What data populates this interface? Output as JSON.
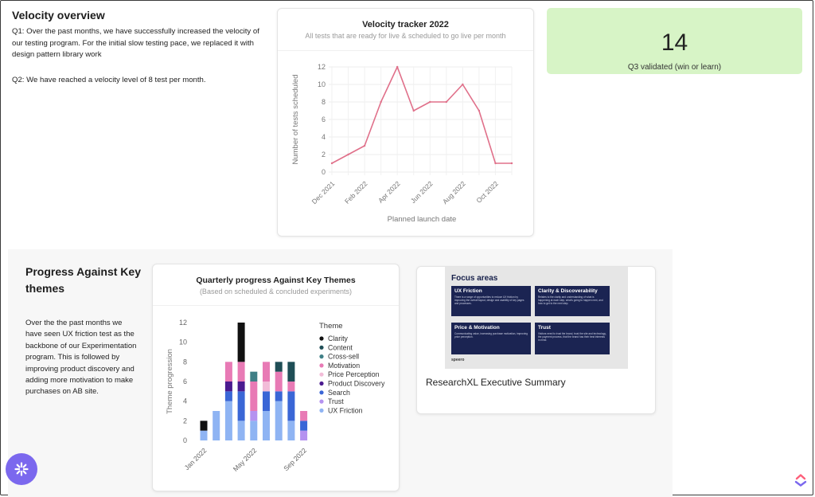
{
  "velocity": {
    "title": "Velocity overview",
    "q1": "Q1: Over the past months, we have successfully increased the velocity of our testing program. For the initial slow testing pace, we replaced it with design pattern library work",
    "q2": "Q2: We have reached a velocity level of 8 test per month."
  },
  "tracker": {
    "title": "Velocity tracker 2022",
    "subtitle": "All tests that are ready for live & scheduled to go live per month"
  },
  "kpi": {
    "value": "14",
    "label": "Q3 validated (win or learn)",
    "bg_color": "#d7f4c6"
  },
  "progress": {
    "title": "Progress Against Key themes",
    "text": "Over the  the past months we have seen UX friction test as the backbone of our Experimentation program. This is followed by improving product discovery and adding more motivation to make purchases on AB site."
  },
  "quarterly": {
    "title": "Quarterly progress Against Key Themes",
    "subtitle": "(Based on scheduled & concluded experiments)"
  },
  "summary": {
    "label": "ResearchXL Executive Summary",
    "thumb_title": "Focus areas",
    "thumb_logo": "speero",
    "boxes": [
      {
        "title": "UX Friction",
        "text": "There is a range of opportunities to reduce UX friction by improving the overall layout, design and usability of key pages and processes."
      },
      {
        "title": "Clarity & Discoverability",
        "text": "Relates to the clarity and understanding of what is happening at each step, what's going to happen next, and how to get to the next step."
      },
      {
        "title": "Price & Motivation",
        "text": "Communicating value, increasing purchase motivation, improving price perception."
      },
      {
        "title": "Trust",
        "text": "Visitors need to trust the brand, trust the site and technology, the payment process, that the brand has their best interests in mind."
      }
    ]
  },
  "icons": {
    "fab": "sparkle-icon",
    "brand": "clickup-logo-icon",
    "fab_color": "#7b68ee"
  },
  "chart_data": [
    {
      "type": "line",
      "xlabel": "Planned launch date",
      "ylabel": "Number of tests scheduled",
      "ylim": [
        0,
        12
      ],
      "yticks": [
        "0",
        "2",
        "4",
        "6",
        "8",
        "10",
        "12"
      ],
      "xtick_labels": [
        "Dec 2021",
        "Feb 2022",
        "Apr 2022",
        "Jun 2022",
        "Aug 2022",
        "Oct 2022"
      ],
      "x": [
        "2021-12",
        "2022-01",
        "2022-02",
        "2022-03",
        "2022-04",
        "2022-05",
        "2022-06",
        "2022-07",
        "2022-08",
        "2022-09",
        "2022-10",
        "2022-11"
      ],
      "series": [
        {
          "values": [
            1,
            2,
            3,
            8,
            12,
            7,
            8,
            8,
            10,
            7,
            1,
            1
          ],
          "color": "#e0708a"
        }
      ],
      "grid": true,
      "legend": "none"
    },
    {
      "type": "bar",
      "stacked": true,
      "ylabel": "Theme progression",
      "ylim": [
        0,
        12
      ],
      "yticks": [
        "0",
        "2",
        "4",
        "6",
        "8",
        "10",
        "12"
      ],
      "xtick_labels": [
        "Jan 2022",
        "May 2022",
        "Sep 2022"
      ],
      "legend_title": "Theme",
      "legend": "right",
      "grid": false,
      "series": [
        {
          "name": "Clarity",
          "color": "#111111",
          "values": [
            1,
            0,
            0,
            4,
            0,
            0,
            0,
            0,
            0
          ]
        },
        {
          "name": "Content",
          "color": "#1f4e56",
          "values": [
            0,
            0,
            0,
            0,
            0,
            0,
            1,
            2,
            0
          ]
        },
        {
          "name": "Cross-sell",
          "color": "#3f7f86",
          "values": [
            0,
            0,
            0,
            0,
            1,
            0,
            0,
            0,
            0
          ]
        },
        {
          "name": "Motivation",
          "color": "#e87ab5",
          "values": [
            0,
            0,
            2,
            2,
            3,
            2,
            2,
            1,
            1
          ]
        },
        {
          "name": "Price Perception",
          "color": "#f2bcd8",
          "values": [
            0,
            0,
            0,
            0,
            0,
            1,
            0,
            0,
            0
          ]
        },
        {
          "name": "Product Discovery",
          "color": "#4b1a8f",
          "values": [
            0,
            0,
            1,
            1,
            0,
            0,
            0,
            0,
            0
          ]
        },
        {
          "name": "Search",
          "color": "#3a66d6",
          "values": [
            0,
            0,
            1,
            3,
            0,
            2,
            1,
            3,
            1
          ]
        },
        {
          "name": "Trust",
          "color": "#b592f0",
          "values": [
            0,
            0,
            0,
            0,
            1,
            0,
            0,
            0,
            1
          ]
        },
        {
          "name": "UX Friction",
          "color": "#8fb4f3",
          "values": [
            1,
            3,
            4,
            2,
            2,
            3,
            4,
            2,
            0
          ]
        }
      ]
    }
  ]
}
